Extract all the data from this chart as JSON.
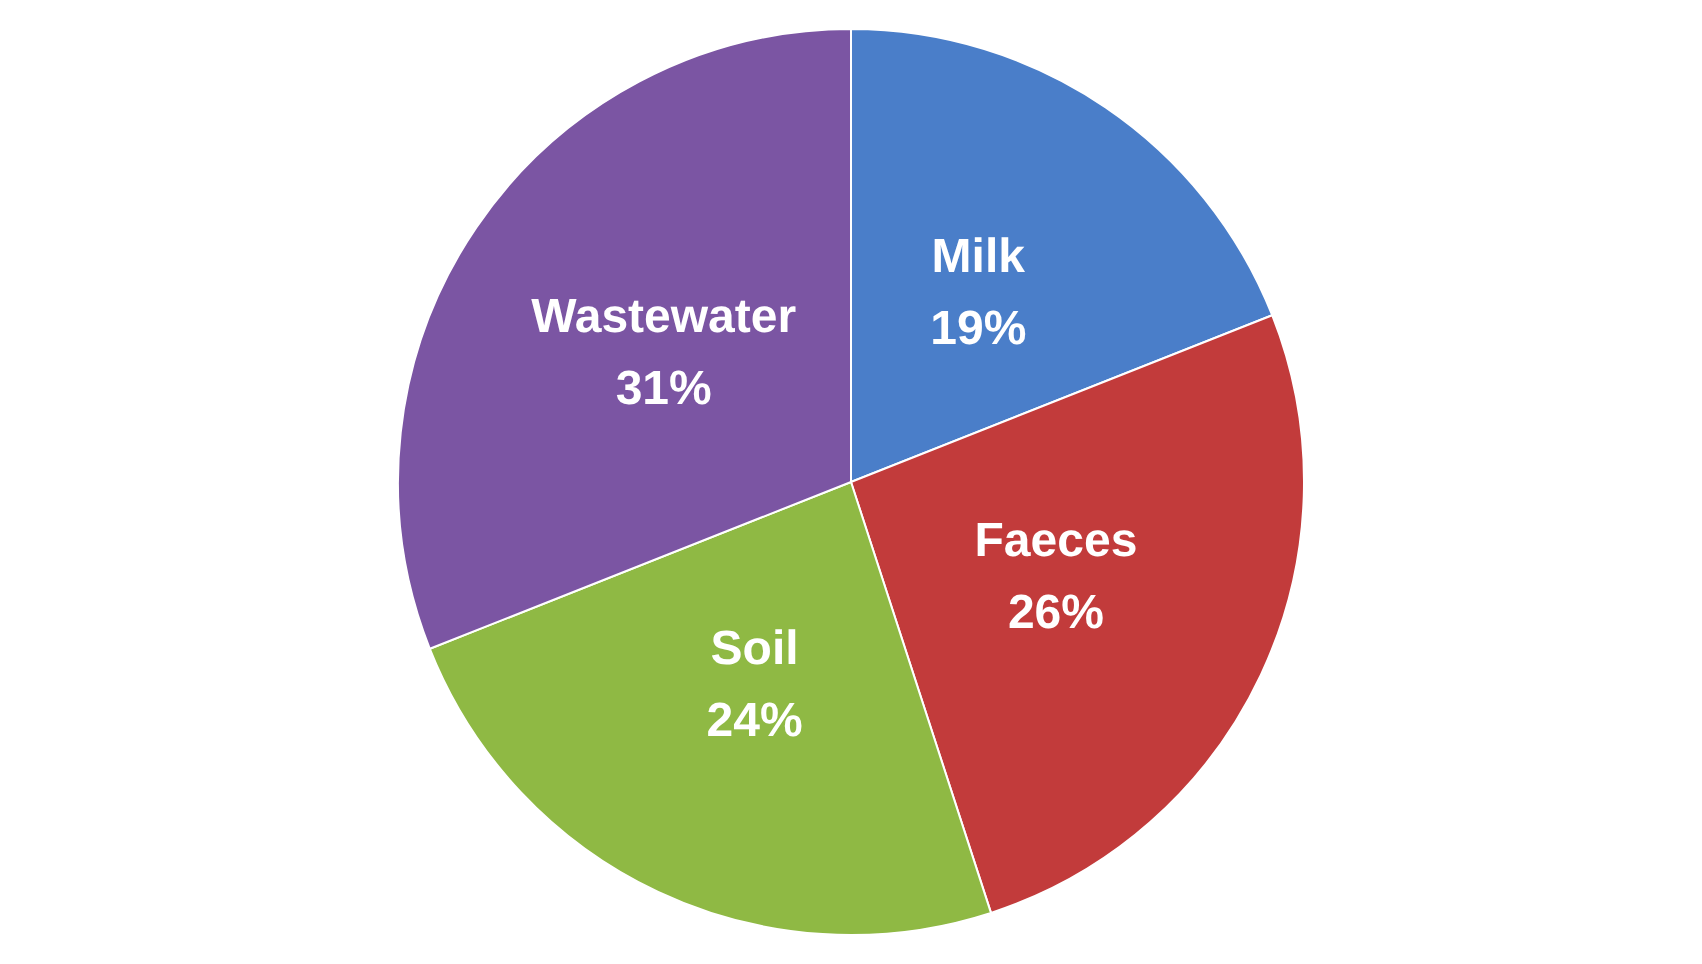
{
  "chart_data": {
    "type": "pie",
    "categories": [
      "Milk",
      "Faeces",
      "Soil",
      "Wastewater"
    ],
    "values": [
      19,
      26,
      24,
      31
    ],
    "colors": [
      "#4a7ec9",
      "#c23b3b",
      "#8fb944",
      "#7b55a3"
    ],
    "value_labels": [
      "19%",
      "26%",
      "24%",
      "31%"
    ]
  }
}
